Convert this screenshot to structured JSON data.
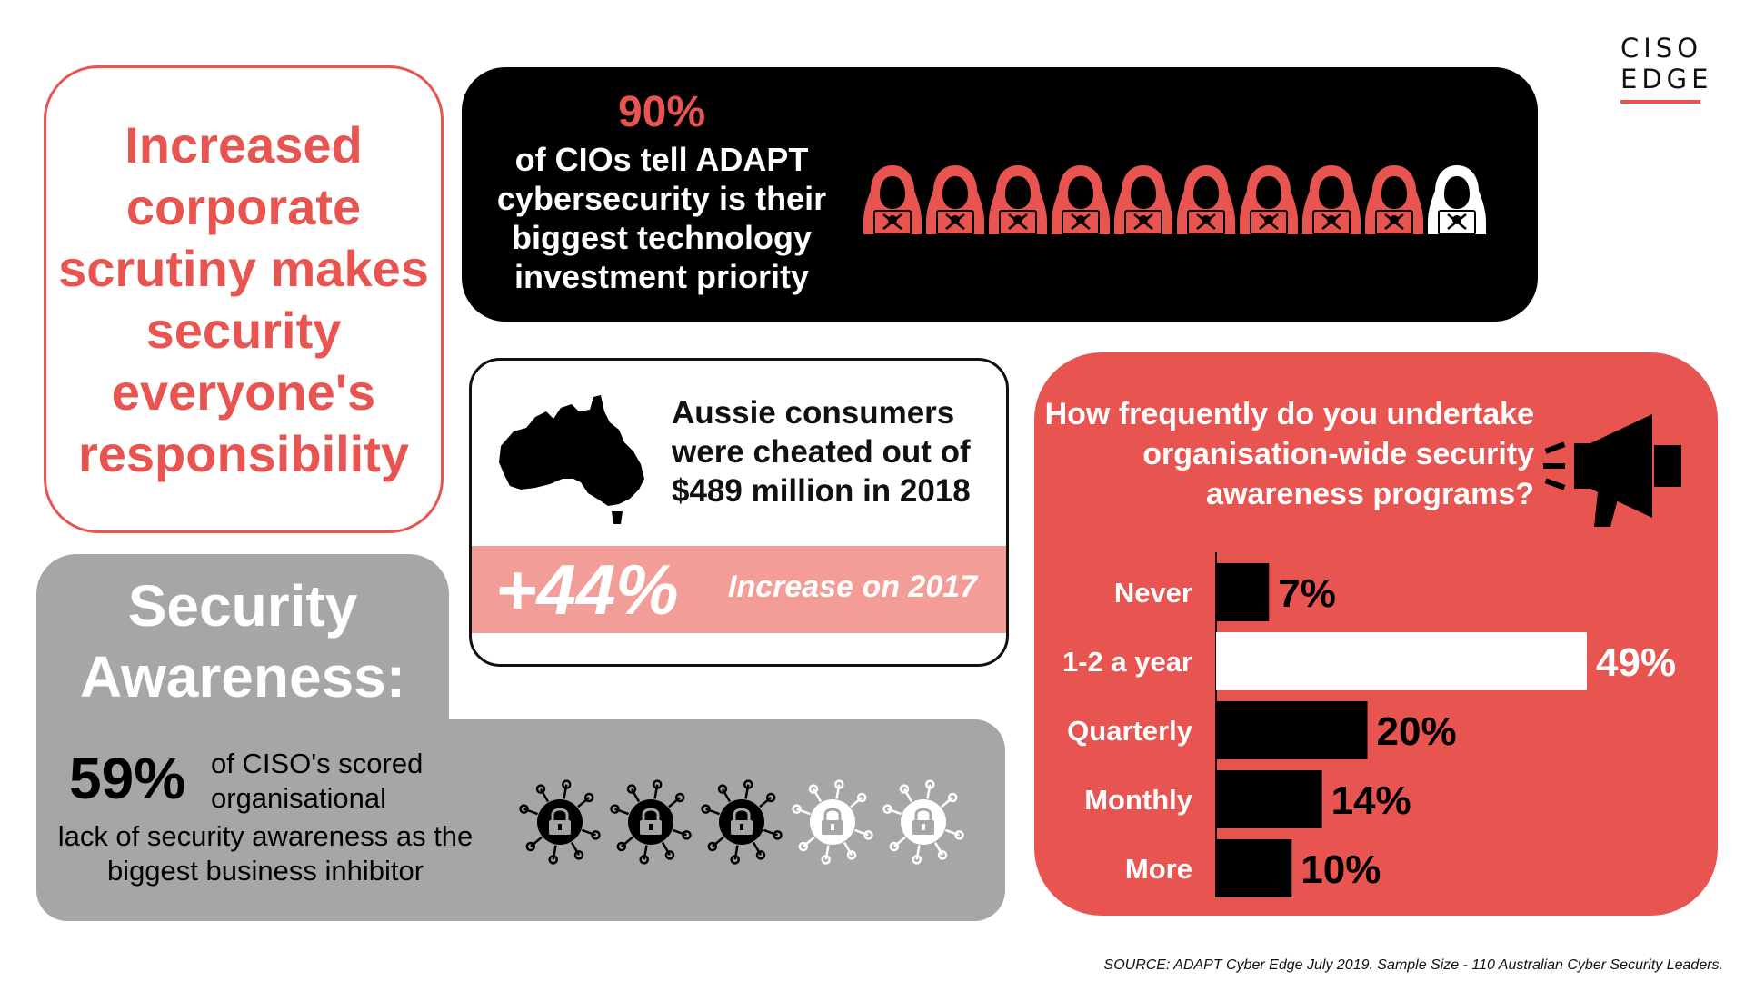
{
  "logo": {
    "line1": "CISO",
    "line2": "EDGE"
  },
  "headline": {
    "text": "Increased corporate scrutiny makes security everyone's responsibility"
  },
  "cio": {
    "percent": "90%",
    "description": "of CIOs tell ADAPT cybersecurity is their biggest technology investment priority",
    "icons": {
      "name": "hacker-icon",
      "highlighted": 9,
      "total": 10,
      "color_highlight": "#e85450",
      "color_other": "#ffffff"
    }
  },
  "australia": {
    "text": "Aussie consumers were cheated out of $489 million in 2018",
    "increase": "+44%",
    "increase_label": "Increase on 2017",
    "band_color": "#f29d97"
  },
  "security_awareness": {
    "title": "Security Awareness:",
    "percent": "59%",
    "desc_part1": "of CISO's scored organisational",
    "desc_part2": "lack of security awareness as the biggest business inhibitor",
    "icons": {
      "name": "lock-icon",
      "dark": 3,
      "total": 5
    }
  },
  "survey": {
    "question": "How frequently do you undertake organisation-wide security awareness programs?"
  },
  "chart_data": {
    "type": "bar",
    "orientation": "horizontal",
    "categories": [
      "Never",
      "1-2 a year",
      "Quarterly",
      "Monthly",
      "More"
    ],
    "values": [
      7,
      49,
      20,
      14,
      10
    ],
    "value_labels": [
      "7%",
      "49%",
      "20%",
      "14%",
      "10%"
    ],
    "highlight_index": 1,
    "xlim": [
      0,
      49
    ],
    "colors": {
      "bar": "#000000",
      "highlight": "#ffffff",
      "background": "#e85450",
      "label": "#ffffff",
      "value_label": "#000000",
      "highlight_value_label": "#ffffff"
    }
  },
  "source": "SOURCE: ADAPT Cyber Edge July 2019. Sample Size - 110 Australian Cyber Security Leaders.",
  "colors": {
    "accent": "#e85450",
    "grey": "#a6a6a6",
    "pink": "#f29d97"
  }
}
